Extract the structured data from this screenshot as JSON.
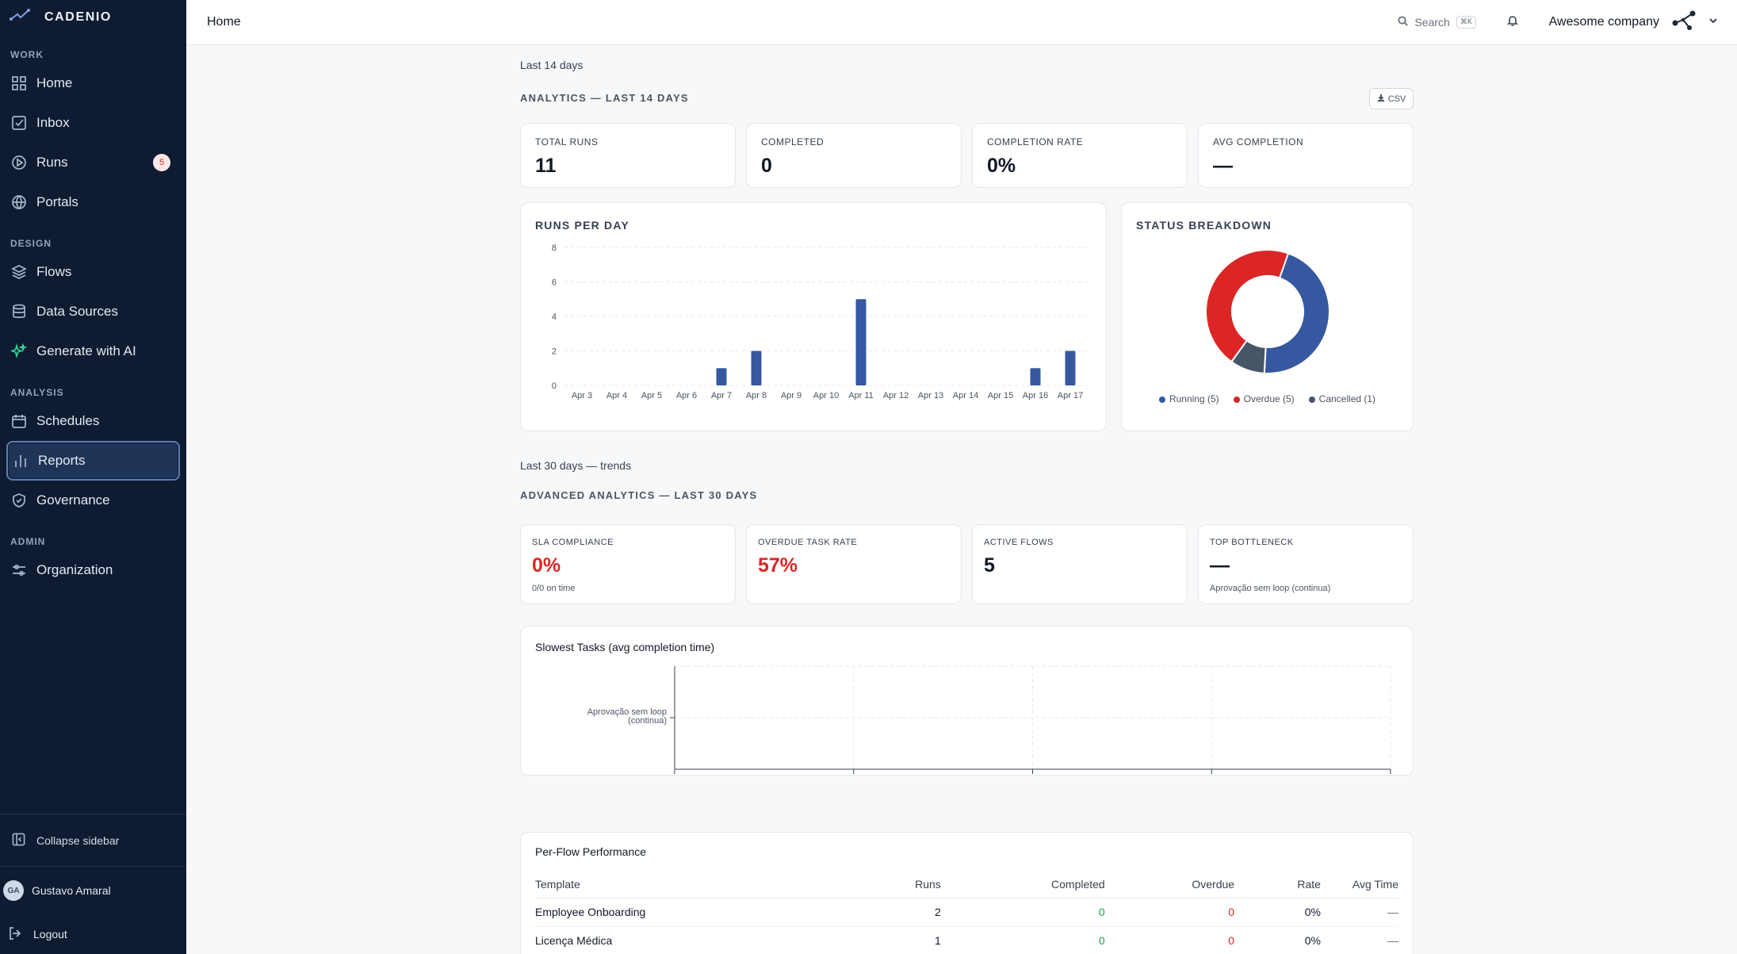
{
  "app": {
    "brand": "CADENIO"
  },
  "sidebar": {
    "sections": [
      {
        "title": "WORK",
        "items": [
          {
            "label": "Home",
            "icon": "grid-icon"
          },
          {
            "label": "Inbox",
            "icon": "inbox-icon"
          },
          {
            "label": "Runs",
            "icon": "play-circle-icon",
            "badge": "5"
          },
          {
            "label": "Portals",
            "icon": "globe-icon"
          }
        ]
      },
      {
        "title": "DESIGN",
        "items": [
          {
            "label": "Flows",
            "icon": "layers-icon"
          },
          {
            "label": "Data Sources",
            "icon": "database-icon"
          },
          {
            "label": "Generate with AI",
            "icon": "sparkles-icon"
          }
        ]
      },
      {
        "title": "ANALYSIS",
        "items": [
          {
            "label": "Schedules",
            "icon": "calendar-icon"
          },
          {
            "label": "Reports",
            "icon": "bar-chart-icon",
            "active": true
          },
          {
            "label": "Governance",
            "icon": "shield-icon"
          }
        ]
      },
      {
        "title": "ADMIN",
        "items": [
          {
            "label": "Organization",
            "icon": "sliders-icon"
          }
        ]
      }
    ],
    "collapse_label": "Collapse sidebar",
    "user": {
      "initials": "GA",
      "name": "Gustavo Amaral"
    },
    "logout_label": "Logout"
  },
  "header": {
    "title": "Home",
    "search_label": "Search",
    "search_shortcut": "⌘K",
    "company": "Awesome company"
  },
  "analytics": {
    "period_label": "Last 14 days",
    "title": "ANALYTICS — LAST 14 DAYS",
    "csv_label": "CSV",
    "kpis": [
      {
        "label": "TOTAL RUNS",
        "value": "11"
      },
      {
        "label": "COMPLETED",
        "value": "0"
      },
      {
        "label": "COMPLETION RATE",
        "value": "0%"
      },
      {
        "label": "AVG COMPLETION",
        "value": "—"
      }
    ]
  },
  "runs_chart_title": "RUNS PER DAY",
  "status_title": "STATUS BREAKDOWN",
  "advanced": {
    "period_label": "Last 30 days — trends",
    "title": "ADVANCED ANALYTICS — LAST 30 DAYS",
    "kpis": [
      {
        "label": "SLA COMPLIANCE",
        "value": "0%",
        "sub": "0/0 on time",
        "color": "#dc2626"
      },
      {
        "label": "OVERDUE TASK RATE",
        "value": "57%",
        "sub": "",
        "color": "#dc2626"
      },
      {
        "label": "ACTIVE FLOWS",
        "value": "5",
        "sub": "",
        "color": "#111827"
      },
      {
        "label": "TOP BOTTLENECK",
        "value": "—",
        "sub": "Aprovação sem loop (continua)",
        "color": "#111827"
      }
    ]
  },
  "slowest_title": "Slowest Tasks (avg completion time)",
  "per_flow": {
    "title": "Per-Flow Performance",
    "columns": [
      "Template",
      "Runs",
      "Completed",
      "Overdue",
      "Rate",
      "Avg Time"
    ],
    "rows": [
      [
        "Employee Onboarding",
        "2",
        "0",
        "0",
        "0%",
        "—"
      ],
      [
        "Licença Médica",
        "1",
        "0",
        "0",
        "0%",
        "—"
      ]
    ]
  },
  "colors": {
    "accent": "#3558a0",
    "danger": "#dc2626",
    "success": "#16a34a",
    "slate": "#475569",
    "sidebar": "#0f1b31"
  },
  "chart_data": [
    {
      "type": "bar",
      "title": "RUNS PER DAY",
      "categories": [
        "Apr 3",
        "Apr 4",
        "Apr 5",
        "Apr 6",
        "Apr 7",
        "Apr 8",
        "Apr 9",
        "Apr 10",
        "Apr 11",
        "Apr 12",
        "Apr 13",
        "Apr 14",
        "Apr 15",
        "Apr 16",
        "Apr 17"
      ],
      "values": [
        0,
        0,
        0,
        0,
        1,
        2,
        0,
        0,
        5,
        0,
        0,
        0,
        0,
        1,
        2
      ],
      "ylim": [
        0,
        8
      ],
      "yticks": [
        0,
        2,
        4,
        6,
        8
      ],
      "grid": true,
      "color": "#3558a0"
    },
    {
      "type": "pie",
      "title": "STATUS BREAKDOWN",
      "labels": [
        "Running",
        "Cancelled",
        "Overdue"
      ],
      "legend": [
        "Running (5)",
        "Overdue (5)",
        "Cancelled (1)"
      ],
      "values": [
        5,
        1,
        5
      ],
      "colors": [
        "#3558a0",
        "#475569",
        "#dc2626"
      ],
      "donut": true,
      "legend_position": "bottom"
    },
    {
      "type": "bar",
      "orientation": "horizontal",
      "title": "Slowest Tasks (avg completion time)",
      "categories": [
        "Aprovação sem loop (continua)"
      ],
      "category_lines": [
        "Aprovação sem loop",
        "(continua)"
      ],
      "values": [
        0
      ],
      "xlim": [
        0,
        4
      ],
      "xticks": [
        0,
        1,
        2,
        3,
        4
      ],
      "grid": true
    }
  ]
}
